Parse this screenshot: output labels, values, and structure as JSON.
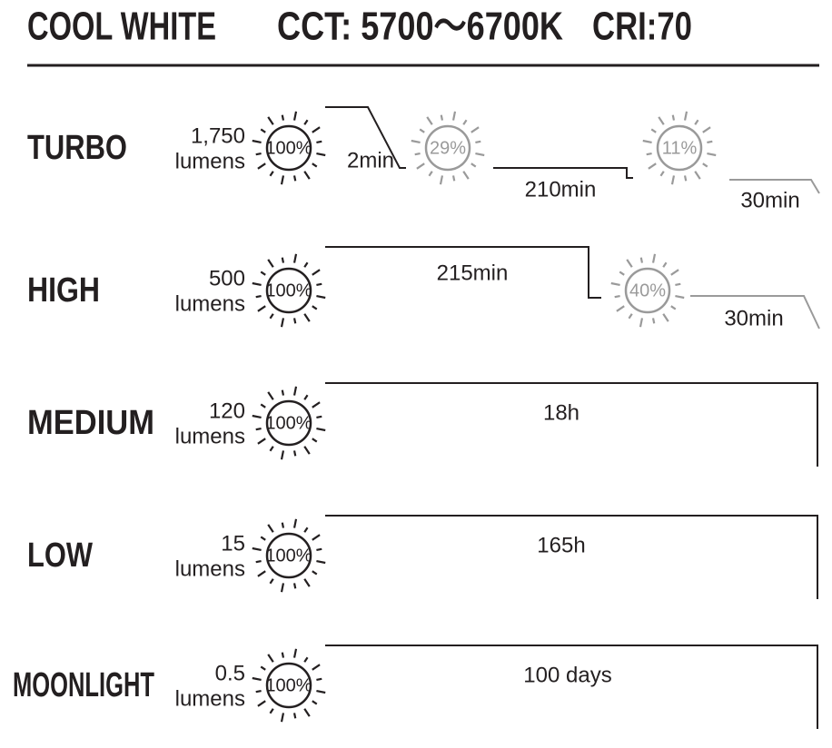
{
  "header": {
    "title": "COOL WHITE",
    "cct": "CCT: 5700～6700K",
    "cri": "CRI:70"
  },
  "modes": [
    {
      "name": "TURBO",
      "lumens": "1,750",
      "unit": "lumens",
      "stages": [
        {
          "percent": "100%",
          "duration": "2min"
        },
        {
          "percent": "29%",
          "duration": "210min"
        },
        {
          "percent": "11%",
          "duration": "30min"
        }
      ]
    },
    {
      "name": "HIGH",
      "lumens": "500",
      "unit": "lumens",
      "stages": [
        {
          "percent": "100%",
          "duration": "215min"
        },
        {
          "percent": "40%",
          "duration": "30min"
        }
      ]
    },
    {
      "name": "MEDIUM",
      "lumens": "120",
      "unit": "lumens",
      "stages": [
        {
          "percent": "100%",
          "duration": "18h"
        }
      ]
    },
    {
      "name": "LOW",
      "lumens": "15",
      "unit": "lumens",
      "stages": [
        {
          "percent": "100%",
          "duration": "165h"
        }
      ]
    },
    {
      "name": "MOONLIGHT",
      "lumens": "0.5",
      "unit": "lumens",
      "stages": [
        {
          "percent": "100%",
          "duration": "100 days"
        }
      ]
    }
  ]
}
